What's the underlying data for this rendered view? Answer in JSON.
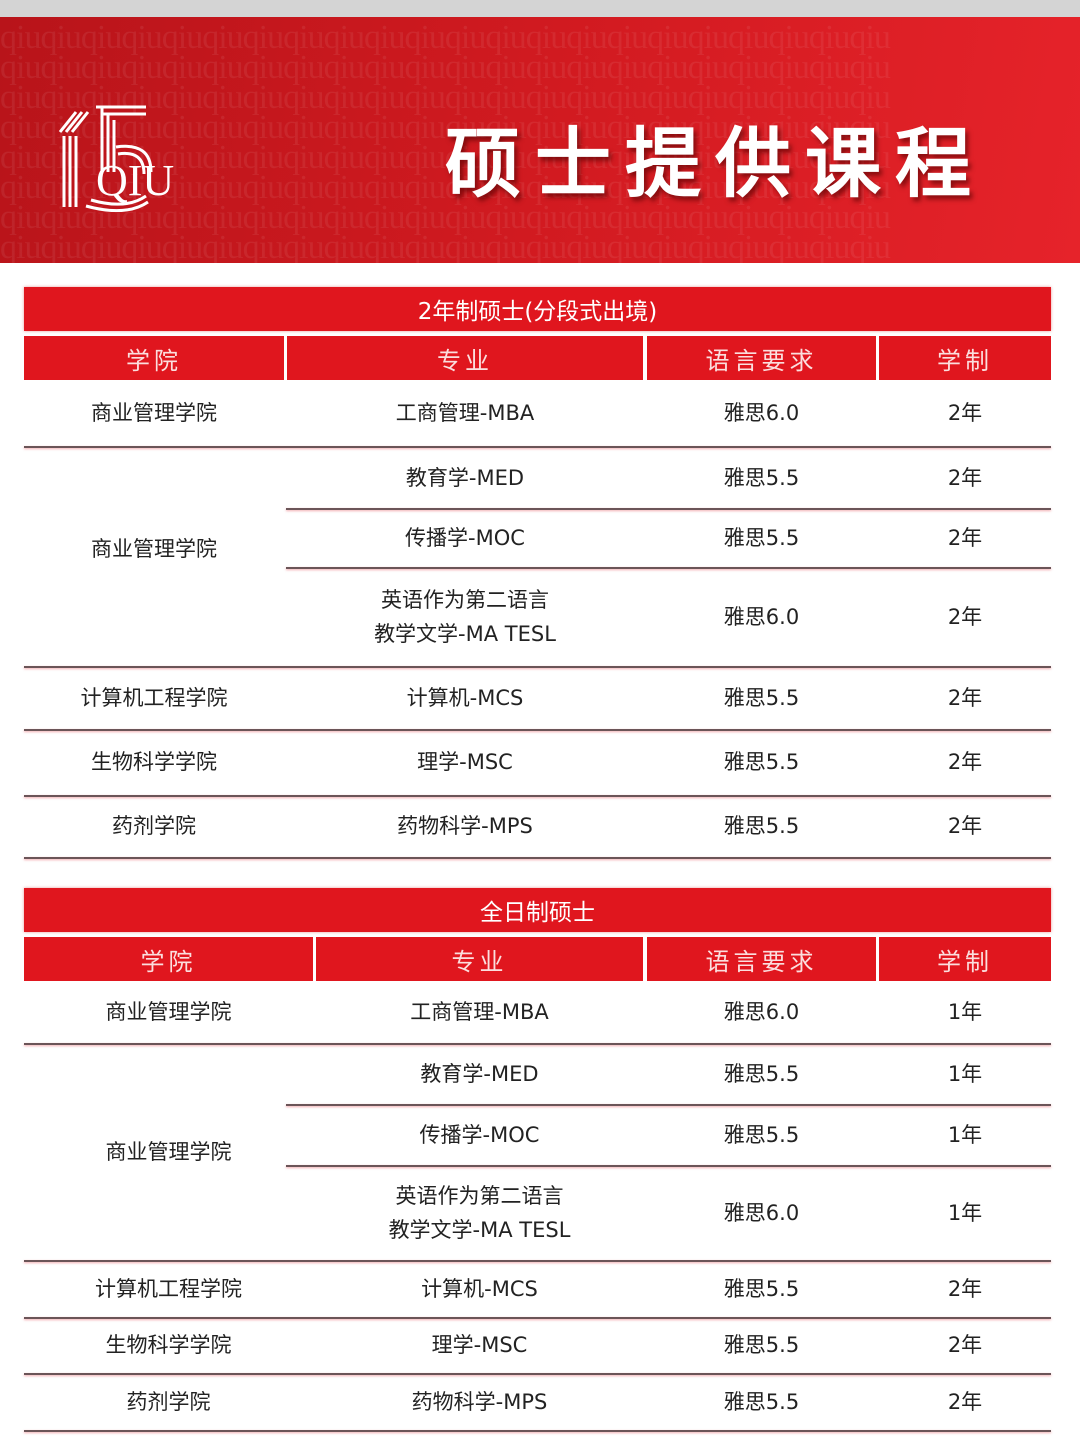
{
  "banner": {
    "title": "硕士提供课程",
    "logo_text": "QIU",
    "brand_color": "#e0161e"
  },
  "tables": [
    {
      "title": "2年制硕士(分段式出境)",
      "headers": [
        "学院",
        "专业",
        "语言要求",
        "学制"
      ],
      "rows": [
        {
          "college": "商业管理学院",
          "programs": [
            {
              "major": "工商管理-MBA",
              "lang": "雅思6.0",
              "duration": "2年"
            }
          ]
        },
        {
          "college": "商业管理学院",
          "programs": [
            {
              "major": "教育学-MED",
              "lang": "雅思5.5",
              "duration": "2年"
            },
            {
              "major": "传播学-MOC",
              "lang": "雅思5.5",
              "duration": "2年"
            },
            {
              "major": "英语作为第二语言\n教学文学-MA TESL",
              "lang": "雅思6.0",
              "duration": "2年"
            }
          ]
        },
        {
          "college": "计算机工程学院",
          "programs": [
            {
              "major": "计算机-MCS",
              "lang": "雅思5.5",
              "duration": "2年"
            }
          ]
        },
        {
          "college": "生物科学学院",
          "programs": [
            {
              "major": "理学-MSC",
              "lang": "雅思5.5",
              "duration": "2年"
            }
          ]
        },
        {
          "college": "药剂学院",
          "programs": [
            {
              "major": "药物科学-MPS",
              "lang": "雅思5.5",
              "duration": "2年"
            }
          ]
        }
      ]
    },
    {
      "title": "全日制硕士",
      "headers": [
        "学院",
        "专业",
        "语言要求",
        "学制"
      ],
      "rows": [
        {
          "college": "商业管理学院",
          "programs": [
            {
              "major": "工商管理-MBA",
              "lang": "雅思6.0",
              "duration": "1年"
            }
          ]
        },
        {
          "college": "商业管理学院",
          "programs": [
            {
              "major": "教育学-MED",
              "lang": "雅思5.5",
              "duration": "1年"
            },
            {
              "major": "传播学-MOC",
              "lang": "雅思5.5",
              "duration": "1年"
            },
            {
              "major": "英语作为第二语言\n教学文学-MA TESL",
              "lang": "雅思6.0",
              "duration": "1年"
            }
          ]
        },
        {
          "college": "计算机工程学院",
          "programs": [
            {
              "major": "计算机-MCS",
              "lang": "雅思5.5",
              "duration": "2年"
            }
          ]
        },
        {
          "college": "生物科学学院",
          "programs": [
            {
              "major": "理学-MSC",
              "lang": "雅思5.5",
              "duration": "2年"
            }
          ]
        },
        {
          "college": "药剂学院",
          "programs": [
            {
              "major": "药物科学-MPS",
              "lang": "雅思5.5",
              "duration": "2年"
            }
          ]
        }
      ]
    }
  ]
}
